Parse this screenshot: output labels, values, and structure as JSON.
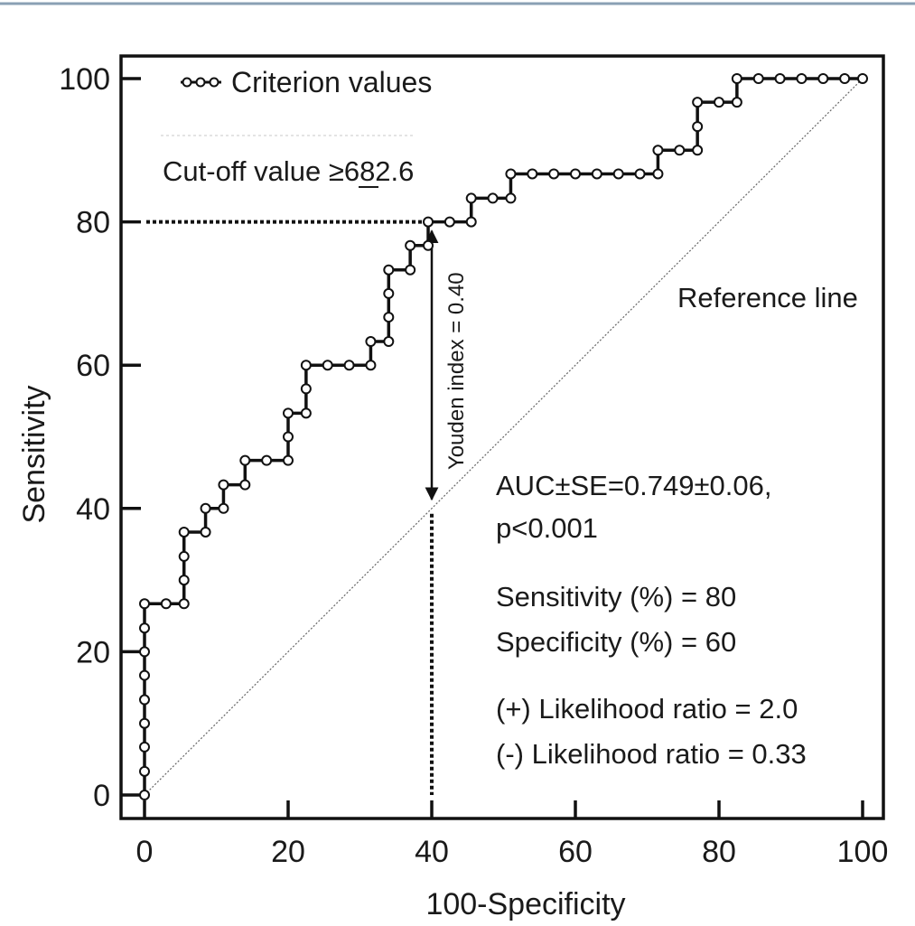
{
  "chart_data": {
    "type": "line",
    "title": "",
    "xlabel": "100-Specificity",
    "ylabel": "Sensitivity",
    "xlim": [
      0,
      100
    ],
    "ylim": [
      0,
      100
    ],
    "x_ticks": [
      "0",
      "20",
      "40",
      "60",
      "80",
      "100"
    ],
    "y_ticks": [
      "0",
      "20",
      "40",
      "60",
      "80",
      "100"
    ],
    "grid": false,
    "legend": {
      "position": "top-left",
      "entries": [
        "Criterion values"
      ]
    },
    "series": [
      {
        "name": "Criterion values",
        "style": "stepped line with open circle markers",
        "points": [
          [
            0,
            0
          ],
          [
            0,
            3.3
          ],
          [
            0,
            6.7
          ],
          [
            0,
            10
          ],
          [
            0,
            13.3
          ],
          [
            0,
            16.7
          ],
          [
            0,
            20
          ],
          [
            0,
            23.3
          ],
          [
            0,
            26.7
          ],
          [
            3,
            26.7
          ],
          [
            5.5,
            26.7
          ],
          [
            5.5,
            30
          ],
          [
            5.5,
            33.3
          ],
          [
            5.5,
            36.7
          ],
          [
            8.5,
            36.7
          ],
          [
            8.5,
            40
          ],
          [
            11,
            40
          ],
          [
            11,
            43.3
          ],
          [
            14,
            43.3
          ],
          [
            14,
            46.7
          ],
          [
            17,
            46.7
          ],
          [
            20,
            46.7
          ],
          [
            20,
            50
          ],
          [
            20,
            53.3
          ],
          [
            22.5,
            53.3
          ],
          [
            22.5,
            56.7
          ],
          [
            22.5,
            60
          ],
          [
            25.5,
            60
          ],
          [
            28.5,
            60
          ],
          [
            31.5,
            60
          ],
          [
            31.5,
            63.3
          ],
          [
            34,
            63.3
          ],
          [
            34,
            66.7
          ],
          [
            34,
            70
          ],
          [
            34,
            73.3
          ],
          [
            37,
            73.3
          ],
          [
            37,
            76.7
          ],
          [
            39.5,
            76.7
          ],
          [
            39.5,
            80
          ],
          [
            42.5,
            80
          ],
          [
            45.5,
            80
          ],
          [
            45.5,
            83.3
          ],
          [
            48.5,
            83.3
          ],
          [
            51,
            83.3
          ],
          [
            51,
            86.7
          ],
          [
            54,
            86.7
          ],
          [
            57,
            86.7
          ],
          [
            60,
            86.7
          ],
          [
            63,
            86.7
          ],
          [
            66,
            86.7
          ],
          [
            69,
            86.7
          ],
          [
            71.5,
            86.7
          ],
          [
            71.5,
            90
          ],
          [
            74.5,
            90
          ],
          [
            77,
            90
          ],
          [
            77,
            93.3
          ],
          [
            77,
            96.7
          ],
          [
            80,
            96.7
          ],
          [
            82.5,
            96.7
          ],
          [
            82.5,
            100
          ],
          [
            85.5,
            100
          ],
          [
            88.5,
            100
          ],
          [
            91.5,
            100
          ],
          [
            94.5,
            100
          ],
          [
            97.5,
            100
          ],
          [
            100,
            100
          ]
        ]
      },
      {
        "name": "Reference line",
        "style": "thin dotted diagonal",
        "points": [
          [
            0,
            0
          ],
          [
            100,
            100
          ]
        ]
      }
    ],
    "cutoff": {
      "x": 40,
      "y_roc": 80,
      "y_ref": 40
    },
    "annotations": {
      "cutoff_label": "Cut-off value ",
      "cutoff_op": "≥",
      "cutoff_value": "682.6",
      "reference_line_label": "Reference line",
      "youden_label": "Youden index = 0.40",
      "auc_line1": "AUC±SE=0.749±0.06,",
      "auc_line2": "p<0.001",
      "sensitivity": "Sensitivity (%) = 80",
      "specificity": "Specificity (%) = 60",
      "plus_lr": "(+) Likelihood ratio = 2.0",
      "minus_lr": "(-) Likelihood ratio = 0.33"
    }
  }
}
